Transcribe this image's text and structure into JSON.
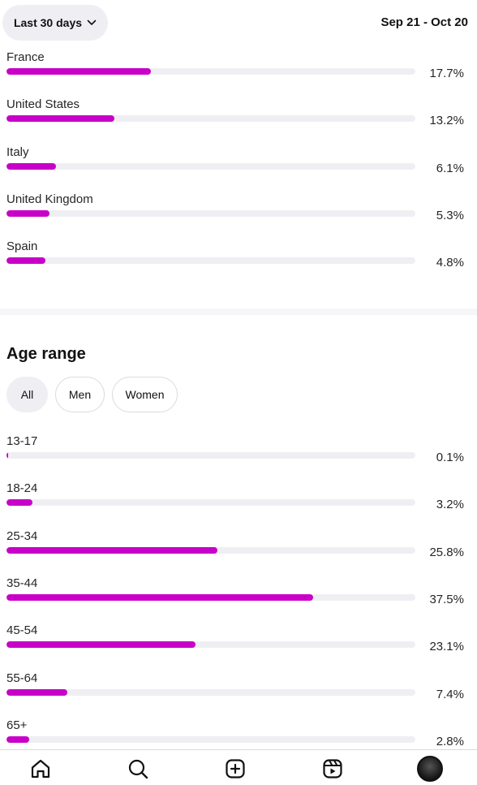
{
  "header": {
    "range_label": "Last 30 days",
    "date_range": "Sep 21 - Oct 20"
  },
  "countries": [
    {
      "label": "France",
      "percent": 17.7,
      "percent_text": "17.7%"
    },
    {
      "label": "United States",
      "percent": 13.2,
      "percent_text": "13.2%"
    },
    {
      "label": "Italy",
      "percent": 6.1,
      "percent_text": "6.1%"
    },
    {
      "label": "United Kingdom",
      "percent": 5.3,
      "percent_text": "5.3%"
    },
    {
      "label": "Spain",
      "percent": 4.8,
      "percent_text": "4.8%"
    }
  ],
  "age_section": {
    "title": "Age range",
    "filters": [
      {
        "label": "All",
        "active": true
      },
      {
        "label": "Men",
        "active": false
      },
      {
        "label": "Women",
        "active": false
      }
    ],
    "rows": [
      {
        "label": "13-17",
        "percent": 0.1,
        "percent_text": "0.1%"
      },
      {
        "label": "18-24",
        "percent": 3.2,
        "percent_text": "3.2%"
      },
      {
        "label": "25-34",
        "percent": 25.8,
        "percent_text": "25.8%"
      },
      {
        "label": "35-44",
        "percent": 37.5,
        "percent_text": "37.5%"
      },
      {
        "label": "45-54",
        "percent": 23.1,
        "percent_text": "23.1%"
      },
      {
        "label": "55-64",
        "percent": 7.4,
        "percent_text": "7.4%"
      },
      {
        "label": "65+",
        "percent": 2.8,
        "percent_text": "2.8%"
      }
    ]
  },
  "colors": {
    "bar_fill": "#c800c8",
    "bar_track": "#efeff3"
  },
  "tabbar": {
    "icons": [
      "home-icon",
      "search-icon",
      "create-icon",
      "reels-icon",
      "profile-avatar"
    ]
  }
}
